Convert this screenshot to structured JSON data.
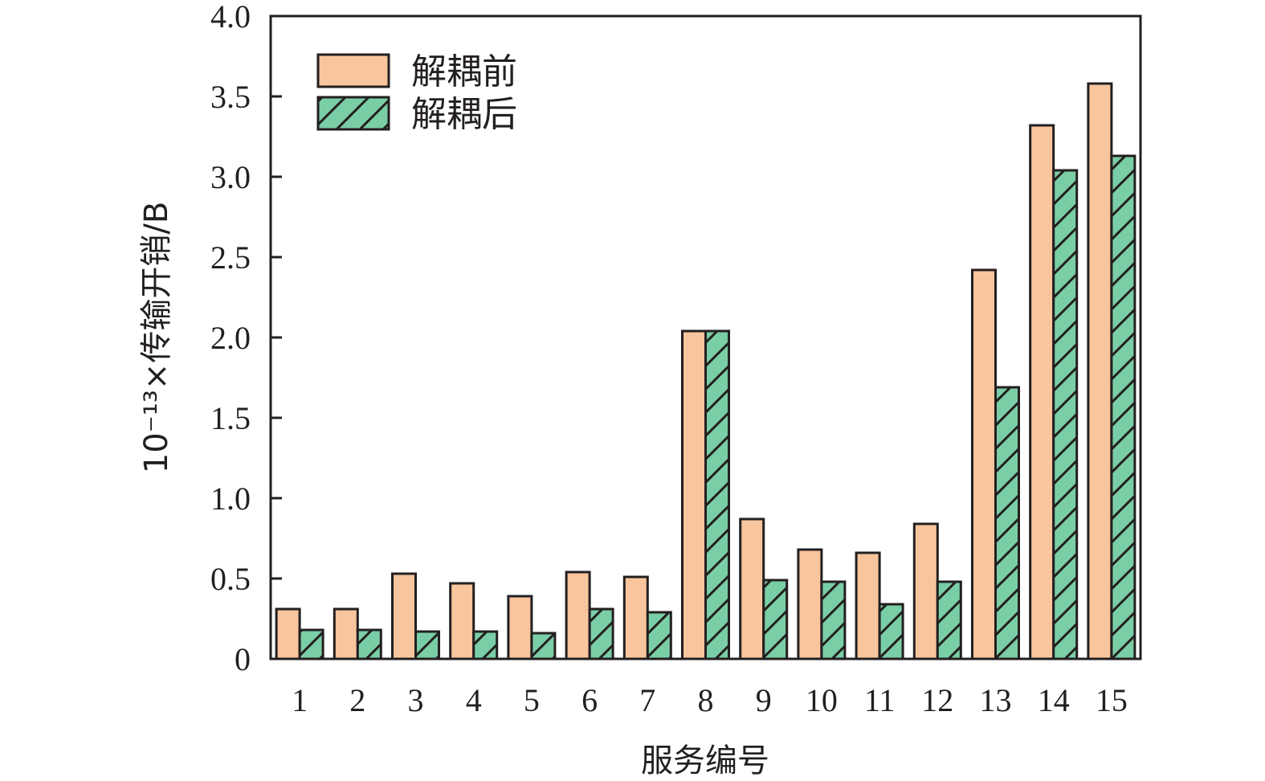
{
  "chart_data": {
    "type": "bar",
    "categories": [
      "1",
      "2",
      "3",
      "4",
      "5",
      "6",
      "7",
      "8",
      "9",
      "10",
      "11",
      "12",
      "13",
      "14",
      "15"
    ],
    "series": [
      {
        "name": "解耦前",
        "values": [
          0.31,
          0.31,
          0.53,
          0.47,
          0.39,
          0.54,
          0.51,
          2.04,
          0.87,
          0.68,
          0.66,
          0.84,
          2.42,
          3.32,
          3.58
        ],
        "color": "#f9c59d",
        "pattern": "solid"
      },
      {
        "name": "解耦后",
        "values": [
          0.18,
          0.18,
          0.17,
          0.17,
          0.16,
          0.31,
          0.29,
          2.04,
          0.49,
          0.48,
          0.34,
          0.48,
          1.69,
          3.04,
          3.13
        ],
        "color": "#7acea5",
        "pattern": "hatch"
      }
    ],
    "xlabel": "服务编号",
    "ylabel": "10⁻¹³×传输开销/B",
    "ylim": [
      0,
      4.0
    ],
    "yticks": [
      "0",
      "0.5",
      "1.0",
      "1.5",
      "2.0",
      "2.5",
      "3.0",
      "3.5",
      "4.0"
    ],
    "grid": false,
    "legend": "top-left"
  }
}
